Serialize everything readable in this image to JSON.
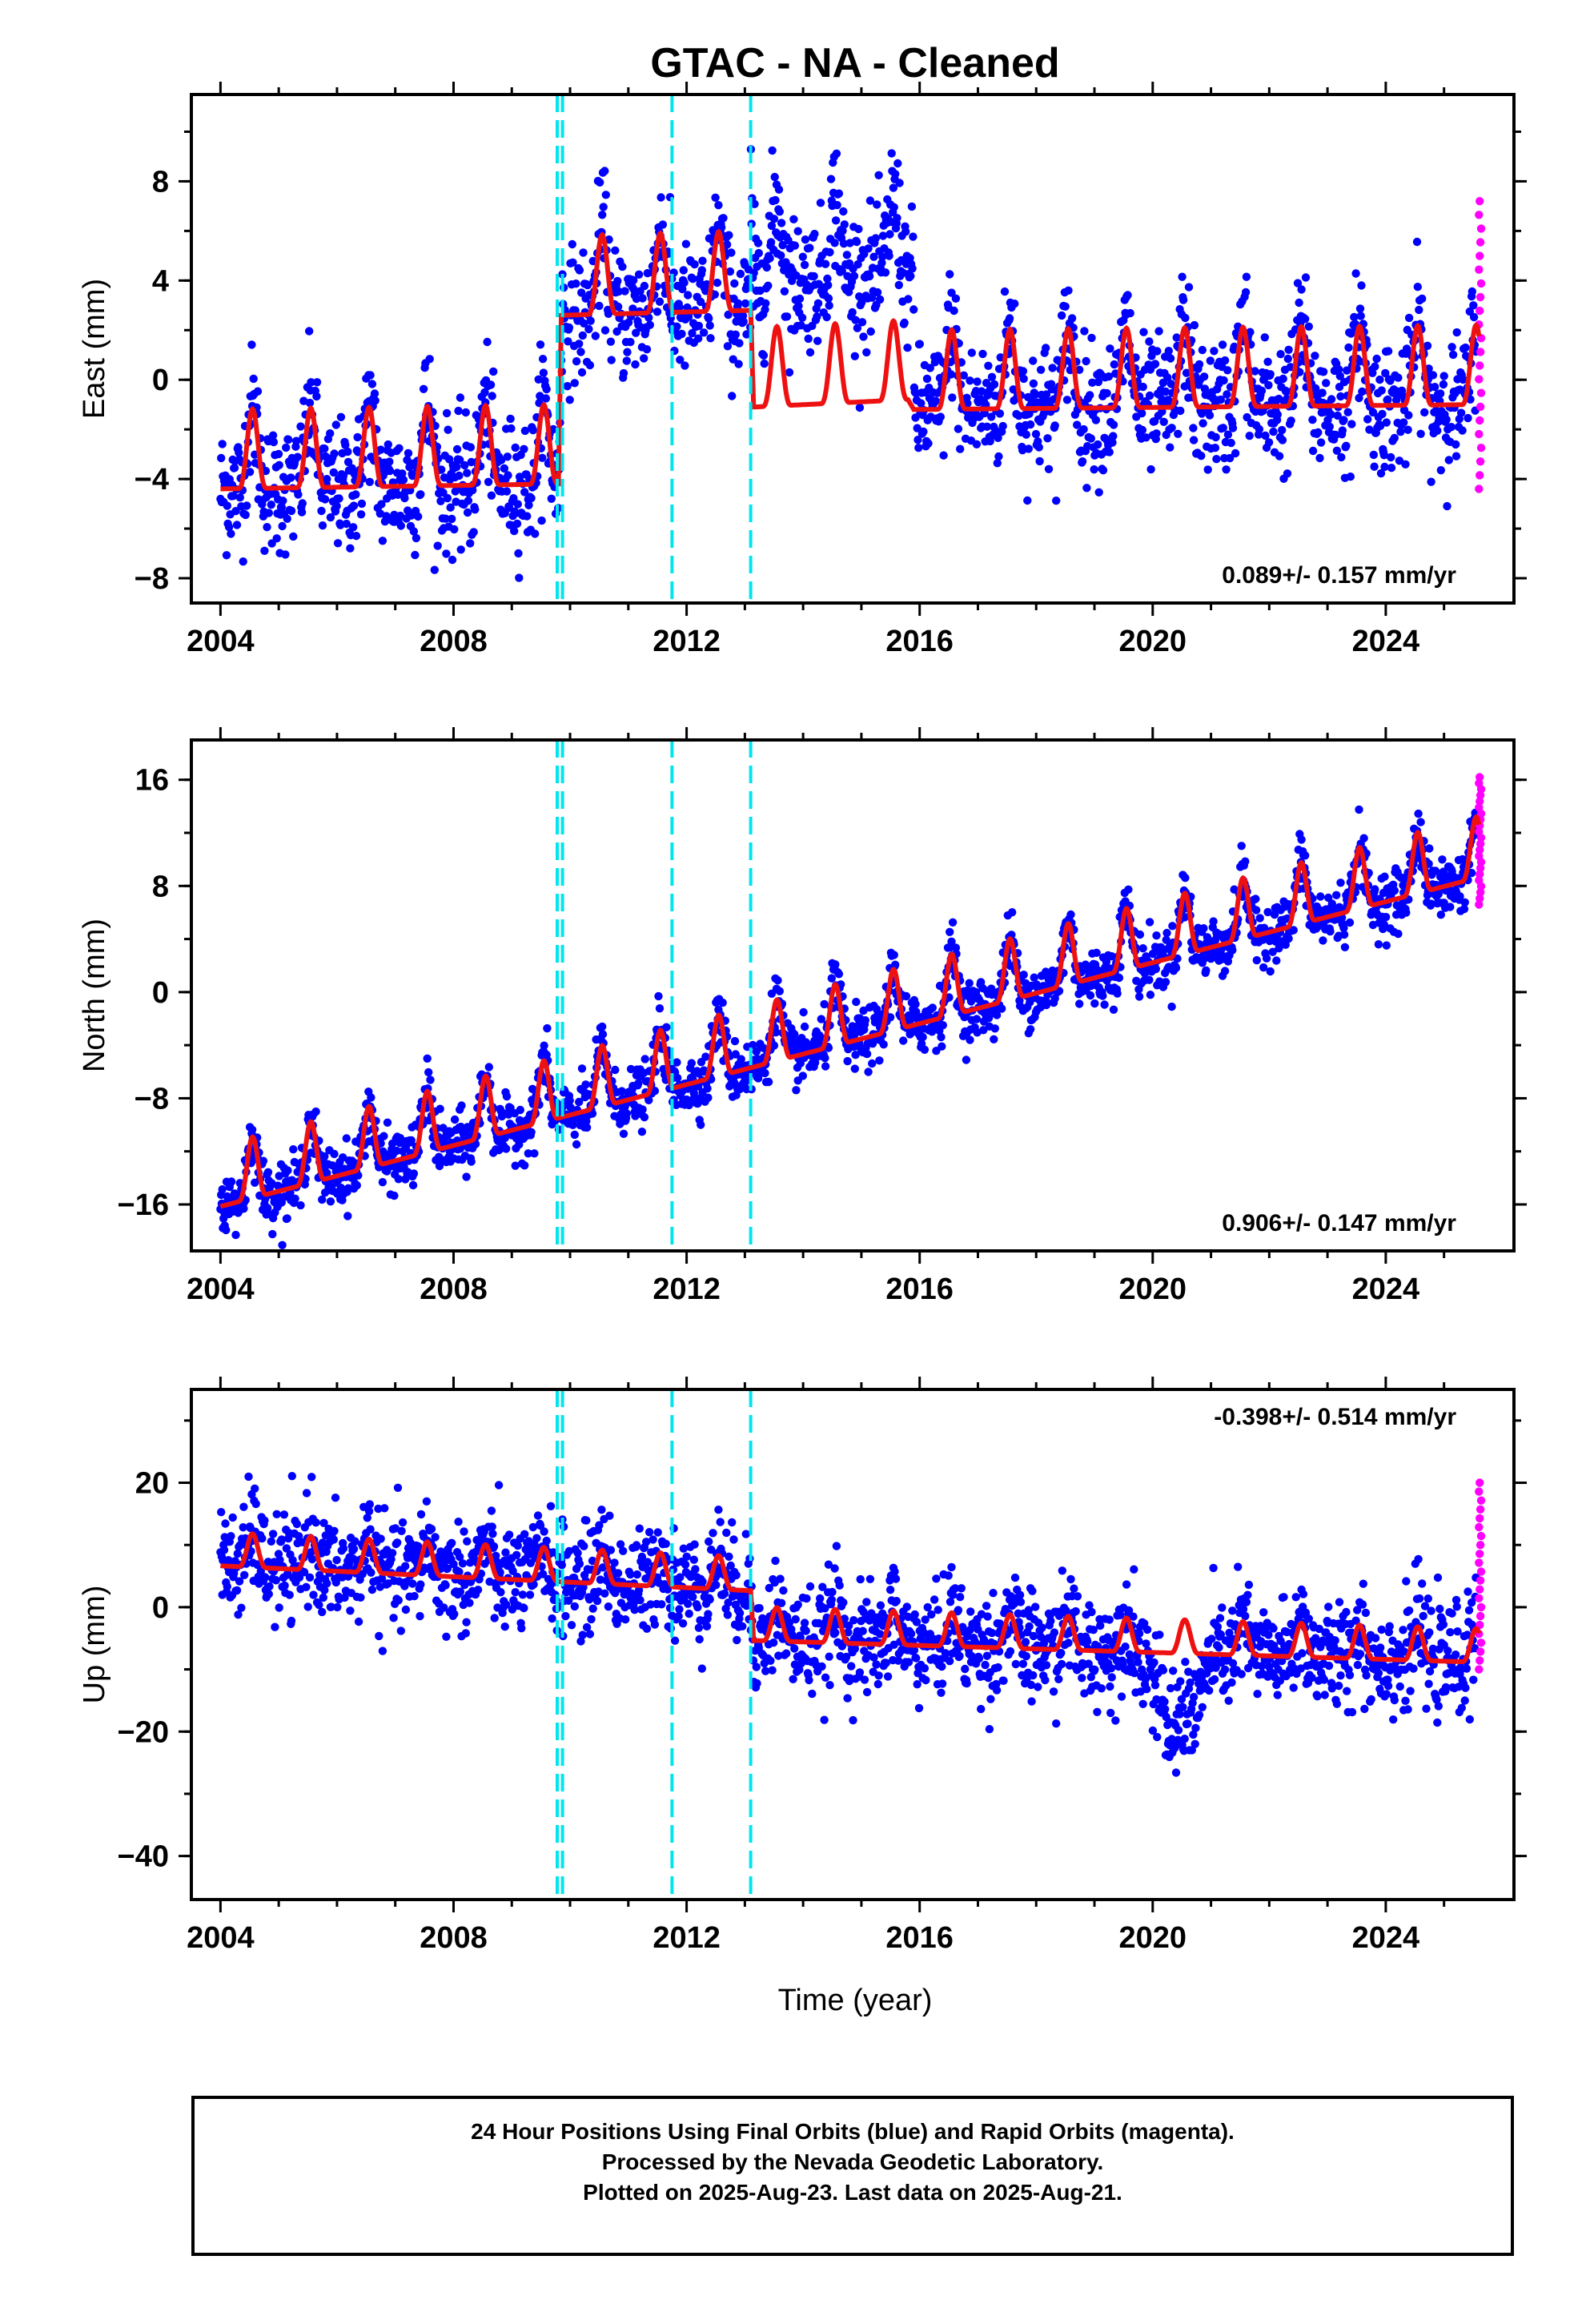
{
  "title": "GTAC  - NA - Cleaned",
  "xlabel": "Time (year)",
  "footer": {
    "line1": "24 Hour Positions Using Final Orbits (blue) and Rapid Orbits (magenta).",
    "line2": "Processed by the Nevada Geodetic Laboratory.",
    "line3": "Plotted on 2025-Aug-23. Last data on 2025-Aug-21."
  },
  "colors": {
    "final": "#0000ff",
    "rapid": "#ff00ff",
    "model": "#ee1111",
    "steps": "#00e5ee"
  },
  "chart_data": [
    {
      "type": "scatter",
      "name": "east",
      "ylabel": "East (mm)",
      "rate": "0.089+/- 0.157 mm/yr",
      "xlim": [
        2003.5,
        2026.2
      ],
      "ylim": [
        -9,
        11.5
      ],
      "xticks": [
        2004,
        2008,
        2012,
        2016,
        2020,
        2024
      ],
      "yticks": [
        -8,
        -4,
        0,
        4,
        8
      ],
      "steps": [
        2009.78,
        2009.87,
        2011.75,
        2013.1
      ],
      "trend": [
        [
          2004.0,
          -3.6
        ],
        [
          2009.8,
          -3.4
        ],
        [
          2009.85,
          3.4
        ],
        [
          2013.1,
          3.6
        ],
        [
          2013.15,
          -0.3
        ],
        [
          2015.8,
          0.0
        ],
        [
          2015.9,
          -0.4
        ],
        [
          2025.6,
          -0.2
        ]
      ],
      "annual_amp": 3.2,
      "scatter_sd": 1.3,
      "rapid_range": [
        -4.4,
        7.2
      ]
    },
    {
      "type": "scatter",
      "name": "north",
      "ylabel": "North (mm)",
      "rate": "0.906+/- 0.147 mm/yr",
      "xlim": [
        2003.5,
        2026.2
      ],
      "ylim": [
        -19.5,
        19
      ],
      "xticks": [
        2004,
        2008,
        2012,
        2016,
        2020,
        2024
      ],
      "yticks": [
        -16,
        -8,
        0,
        8,
        16
      ],
      "steps": [
        2009.78,
        2009.87,
        2011.75,
        2013.1
      ],
      "trend": [
        [
          2004.0,
          -15.0
        ],
        [
          2025.6,
          9.8
        ]
      ],
      "annual_amp": 4.6,
      "scatter_sd": 1.1,
      "rapid_range": [
        6.6,
        16.2
      ]
    },
    {
      "type": "scatter",
      "name": "up",
      "ylabel": "Up (mm)",
      "rate": "-0.398+/- 0.514 mm/yr",
      "xlim": [
        2003.5,
        2026.2
      ],
      "ylim": [
        -47,
        35
      ],
      "xticks": [
        2004,
        2008,
        2012,
        2016,
        2020,
        2024
      ],
      "yticks": [
        -40,
        -20,
        0,
        20
      ],
      "steps": [
        2009.78,
        2009.87,
        2011.75,
        2013.1
      ],
      "trend": [
        [
          2004.0,
          8.0
        ],
        [
          2013.1,
          4.0
        ],
        [
          2013.15,
          -4.0
        ],
        [
          2025.6,
          -7.5
        ]
      ],
      "annual_amp": 5.4,
      "scatter_sd": 4.2,
      "rapid_range": [
        -10,
        20
      ]
    }
  ]
}
